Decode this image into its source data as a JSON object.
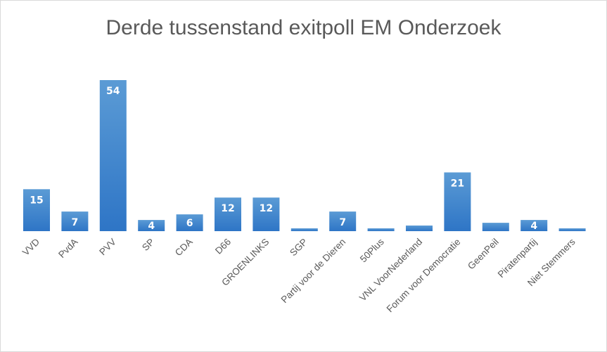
{
  "chart_data": {
    "type": "bar",
    "title": "Derde tussenstand exitpoll EM Onderzoek",
    "categories": [
      "VVD",
      "PvdA",
      "PVV",
      "SP",
      "CDA",
      "D66",
      "GROENLINKS",
      "SGP",
      "Partij voor de Dieren",
      "50Plus",
      "VNL VoorNederland",
      "Forum voor Democratie",
      "GeenPeil",
      "Piratenpartij",
      "Niet Stemmers"
    ],
    "values": [
      15,
      7,
      54,
      4,
      6,
      12,
      12,
      1,
      7,
      1,
      2,
      21,
      3,
      4,
      1
    ],
    "xlabel": "",
    "ylabel": "",
    "ylim": [
      0,
      54
    ],
    "grid": false,
    "legend": "none",
    "data_labels": true,
    "colors": {
      "bar_top": "#5b9bd5",
      "bar_bottom": "#2e75c6",
      "label": "#ffffff",
      "text": "#595959"
    }
  }
}
